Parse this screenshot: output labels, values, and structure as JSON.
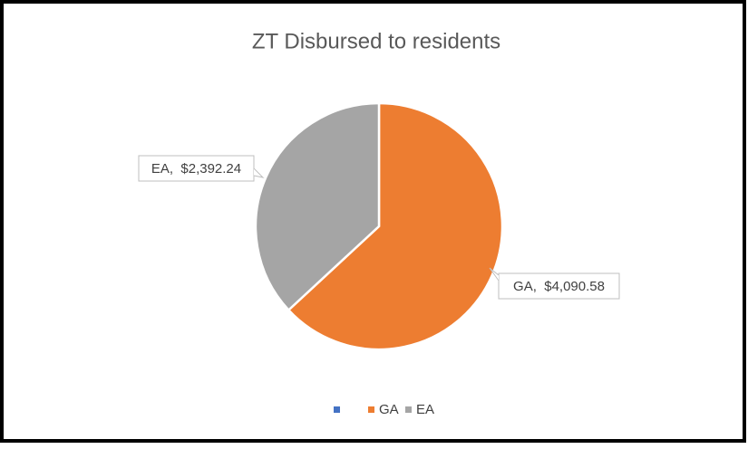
{
  "chart_data": {
    "type": "pie",
    "title": "ZT Disbursed to residents",
    "categories": [
      null,
      "GA",
      "EA"
    ],
    "values": [
      0,
      4090.58,
      2392.24
    ],
    "value_labels": [
      null,
      "GA,  $4,090.58",
      "EA,  $2,392.24"
    ],
    "colors": [
      "#4472c4",
      "#ed7d31",
      "#a5a5a5"
    ],
    "legend": "bottom"
  }
}
